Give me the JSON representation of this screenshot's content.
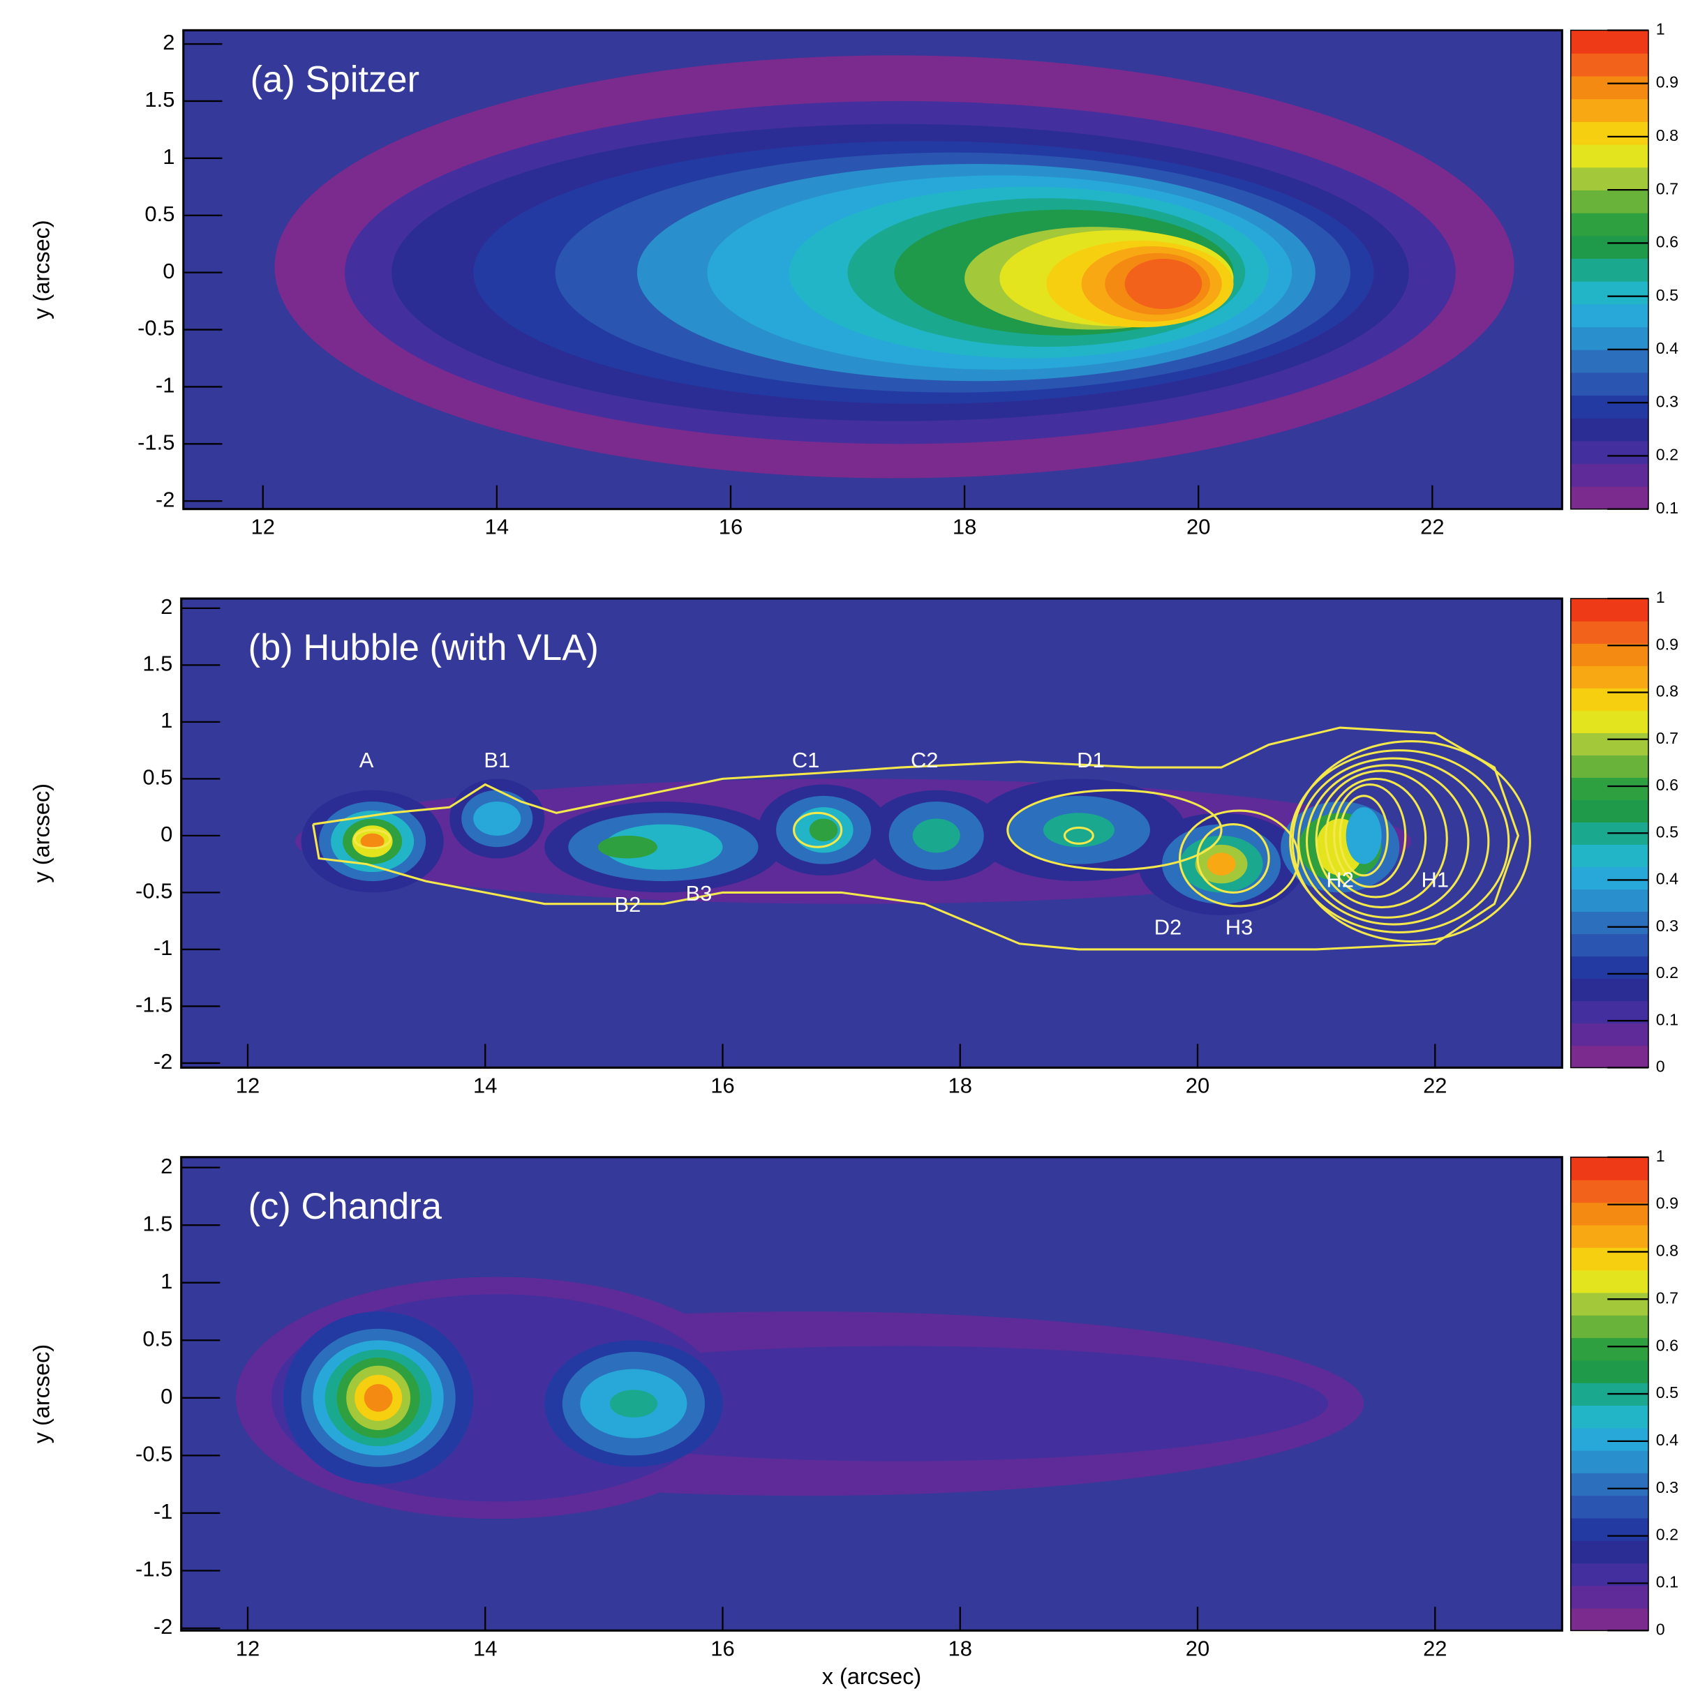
{
  "palette": [
    "#7b2a8e",
    "#5f2b98",
    "#43309e",
    "#2c2d94",
    "#233aa3",
    "#2a55b0",
    "#2b6fbd",
    "#2a8fcd",
    "#27a8d8",
    "#22b5c8",
    "#1aa88e",
    "#1e9a4a",
    "#2ea040",
    "#6ab33a",
    "#a3c93a",
    "#e4e41e",
    "#f6d010",
    "#f7a812",
    "#f58a12",
    "#f2621a",
    "#ee3a16"
  ],
  "chart_data": [
    {
      "type": "contour",
      "title": "(a) Spitzer",
      "ylabel": "y (arcsec)",
      "background": "#35399a",
      "xlim": [
        11.32,
        23.11
      ],
      "ylim": [
        -2.07,
        2.12
      ],
      "xticks": [
        12,
        14,
        16,
        18,
        20,
        22
      ],
      "yticks": [
        -2,
        -1.5,
        -1,
        -0.5,
        0,
        0.5,
        1,
        1.5,
        2
      ],
      "zlim": [
        0.1,
        1
      ],
      "zticks": [
        0.1,
        0.2,
        0.3,
        0.4,
        0.5,
        0.6,
        0.7,
        0.8,
        0.9,
        1
      ],
      "contours": [
        {
          "level": 0.1,
          "cx": 17.4,
          "cy": 0.05,
          "rx": 5.3,
          "ry": 1.85
        },
        {
          "level": 0.2,
          "cx": 17.45,
          "cy": 0,
          "rx": 4.75,
          "ry": 1.5
        },
        {
          "level": 0.25,
          "cx": 17.45,
          "cy": 0,
          "rx": 4.35,
          "ry": 1.3
        },
        {
          "level": 0.3,
          "cx": 17.65,
          "cy": 0,
          "rx": 3.85,
          "ry": 1.15
        },
        {
          "level": 0.35,
          "cx": 17.9,
          "cy": 0,
          "rx": 3.4,
          "ry": 1.05
        },
        {
          "level": 0.4,
          "cx": 18.1,
          "cy": 0,
          "rx": 2.9,
          "ry": 0.95
        },
        {
          "level": 0.45,
          "cx": 18.3,
          "cy": 0,
          "rx": 2.5,
          "ry": 0.85
        },
        {
          "level": 0.5,
          "cx": 18.55,
          "cy": 0,
          "rx": 2.05,
          "ry": 0.75
        },
        {
          "level": 0.55,
          "cx": 18.7,
          "cy": 0,
          "rx": 1.7,
          "ry": 0.65
        },
        {
          "level": 0.6,
          "cx": 18.85,
          "cy": 0,
          "rx": 1.45,
          "ry": 0.55
        },
        {
          "level": 0.7,
          "cx": 19.1,
          "cy": -0.05,
          "rx": 1.1,
          "ry": 0.45
        },
        {
          "level": 0.75,
          "cx": 19.3,
          "cy": -0.05,
          "rx": 1.0,
          "ry": 0.42
        },
        {
          "level": 0.8,
          "cx": 19.5,
          "cy": -0.1,
          "rx": 0.8,
          "ry": 0.38
        },
        {
          "level": 0.85,
          "cx": 19.6,
          "cy": -0.1,
          "rx": 0.6,
          "ry": 0.33
        },
        {
          "level": 0.9,
          "cx": 19.65,
          "cy": -0.1,
          "rx": 0.45,
          "ry": 0.27
        },
        {
          "level": 0.95,
          "cx": 19.7,
          "cy": -0.1,
          "rx": 0.33,
          "ry": 0.22
        }
      ]
    },
    {
      "type": "contour",
      "title": "(b) Hubble (with VLA)",
      "ylabel": "y (arcsec)",
      "background": "#35399a",
      "xlim": [
        11.44,
        23.07
      ],
      "ylim": [
        -2.04,
        2.085
      ],
      "xticks": [
        12,
        14,
        16,
        18,
        20,
        22
      ],
      "yticks": [
        -2,
        -1.5,
        -1,
        -0.5,
        0,
        0.5,
        1,
        1.5,
        2
      ],
      "zlim": [
        0,
        1
      ],
      "zticks": [
        0,
        0.1,
        0.2,
        0.3,
        0.4,
        0.5,
        0.6,
        0.7,
        0.8,
        0.9,
        1
      ],
      "contours": [
        {
          "level": 0.05,
          "cx": 17.1,
          "cy": -0.05,
          "rx": 4.7,
          "ry": 0.55
        },
        {
          "level": 0.15,
          "cx": 13.05,
          "cy": -0.05,
          "rx": 0.6,
          "ry": 0.45
        },
        {
          "level": 0.15,
          "cx": 14.1,
          "cy": 0.15,
          "rx": 0.4,
          "ry": 0.35
        },
        {
          "level": 0.15,
          "cx": 15.5,
          "cy": -0.1,
          "rx": 1.0,
          "ry": 0.4
        },
        {
          "level": 0.15,
          "cx": 16.85,
          "cy": 0.05,
          "rx": 0.55,
          "ry": 0.4
        },
        {
          "level": 0.15,
          "cx": 17.8,
          "cy": 0,
          "rx": 0.6,
          "ry": 0.4
        },
        {
          "level": 0.15,
          "cx": 19.0,
          "cy": 0.05,
          "rx": 0.9,
          "ry": 0.45
        },
        {
          "level": 0.15,
          "cx": 20.2,
          "cy": -0.25,
          "rx": 0.7,
          "ry": 0.45
        },
        {
          "level": 0.3,
          "cx": 13.05,
          "cy": -0.05,
          "rx": 0.45,
          "ry": 0.35
        },
        {
          "level": 0.3,
          "cx": 14.1,
          "cy": 0.15,
          "rx": 0.3,
          "ry": 0.25
        },
        {
          "level": 0.3,
          "cx": 15.5,
          "cy": -0.1,
          "rx": 0.8,
          "ry": 0.3
        },
        {
          "level": 0.3,
          "cx": 16.85,
          "cy": 0.05,
          "rx": 0.4,
          "ry": 0.3
        },
        {
          "level": 0.3,
          "cx": 17.8,
          "cy": 0,
          "rx": 0.4,
          "ry": 0.3
        },
        {
          "level": 0.3,
          "cx": 19.0,
          "cy": 0.05,
          "rx": 0.6,
          "ry": 0.3
        },
        {
          "level": 0.3,
          "cx": 20.2,
          "cy": -0.25,
          "rx": 0.5,
          "ry": 0.35
        },
        {
          "level": 0.3,
          "cx": 21.2,
          "cy": -0.1,
          "rx": 0.5,
          "ry": 0.4
        },
        {
          "level": 0.4,
          "cx": 14.1,
          "cy": 0.15,
          "rx": 0.2,
          "ry": 0.15
        },
        {
          "level": 0.45,
          "cx": 13.05,
          "cy": -0.05,
          "rx": 0.35,
          "ry": 0.27
        },
        {
          "level": 0.45,
          "cx": 15.5,
          "cy": -0.1,
          "rx": 0.5,
          "ry": 0.2
        },
        {
          "level": 0.45,
          "cx": 16.85,
          "cy": 0.05,
          "rx": 0.25,
          "ry": 0.2
        },
        {
          "level": 0.5,
          "cx": 17.8,
          "cy": 0,
          "rx": 0.2,
          "ry": 0.15
        },
        {
          "level": 0.5,
          "cx": 19.0,
          "cy": 0.05,
          "rx": 0.3,
          "ry": 0.15
        },
        {
          "level": 0.5,
          "cx": 20.2,
          "cy": -0.25,
          "rx": 0.35,
          "ry": 0.25
        },
        {
          "level": 0.6,
          "cx": 13.05,
          "cy": -0.05,
          "rx": 0.25,
          "ry": 0.2
        },
        {
          "level": 0.6,
          "cx": 15.2,
          "cy": -0.1,
          "rx": 0.25,
          "ry": 0.1
        },
        {
          "level": 0.6,
          "cx": 16.85,
          "cy": 0.05,
          "rx": 0.12,
          "ry": 0.1
        },
        {
          "level": 0.6,
          "cx": 21.2,
          "cy": -0.1,
          "rx": 0.35,
          "ry": 0.3
        },
        {
          "level": 0.7,
          "cx": 20.2,
          "cy": -0.25,
          "rx": 0.22,
          "ry": 0.17
        },
        {
          "level": 0.75,
          "cx": 13.05,
          "cy": -0.05,
          "rx": 0.17,
          "ry": 0.14
        },
        {
          "level": 0.75,
          "cx": 21.2,
          "cy": -0.1,
          "rx": 0.2,
          "ry": 0.25
        },
        {
          "level": 0.85,
          "cx": 20.2,
          "cy": -0.25,
          "rx": 0.12,
          "ry": 0.1
        },
        {
          "level": 0.9,
          "cx": 13.05,
          "cy": -0.05,
          "rx": 0.1,
          "ry": 0.07
        },
        {
          "level": 0.4,
          "cx": 21.4,
          "cy": 0,
          "rx": 0.15,
          "ry": 0.25
        }
      ],
      "radio_color": "#f5e84a",
      "radio_contours": [
        {
          "cx": 21.4,
          "cy": 0,
          "rx": 0.2,
          "ry": 0.35
        },
        {
          "cx": 21.45,
          "cy": 0,
          "rx": 0.3,
          "ry": 0.45
        },
        {
          "cx": 21.5,
          "cy": -0.02,
          "rx": 0.42,
          "ry": 0.52
        },
        {
          "cx": 21.55,
          "cy": -0.03,
          "rx": 0.55,
          "ry": 0.6
        },
        {
          "cx": 21.6,
          "cy": -0.05,
          "rx": 0.68,
          "ry": 0.67
        },
        {
          "cx": 21.65,
          "cy": -0.05,
          "rx": 0.8,
          "ry": 0.73
        },
        {
          "cx": 21.7,
          "cy": -0.05,
          "rx": 0.92,
          "ry": 0.8
        },
        {
          "cx": 21.8,
          "cy": -0.05,
          "rx": 1.0,
          "ry": 0.88
        },
        {
          "cx": 13.05,
          "cy": -0.03,
          "rx": 0.15,
          "ry": 0.08
        },
        {
          "cx": 16.8,
          "cy": 0.05,
          "rx": 0.2,
          "ry": 0.15
        },
        {
          "cx": 19.0,
          "cy": 0,
          "rx": 0.12,
          "ry": 0.07
        },
        {
          "cx": 19.3,
          "cy": 0.05,
          "rx": 0.9,
          "ry": 0.35
        },
        {
          "cx": 20.3,
          "cy": -0.2,
          "rx": 0.3,
          "ry": 0.3
        },
        {
          "cx": 20.35,
          "cy": -0.2,
          "rx": 0.5,
          "ry": 0.42
        }
      ],
      "envelope": {
        "x": [
          12.55,
          13.2,
          13.7,
          14.0,
          14.3,
          14.6,
          15.3,
          16.0,
          16.8,
          17.5,
          18.5,
          19.5,
          20.2,
          20.6,
          21.2,
          22.0,
          22.5,
          22.7,
          22.5,
          22.0,
          21.0,
          20.0,
          19.0,
          18.5,
          17.7,
          17.0,
          16.0,
          15.5,
          15.0,
          14.5,
          14.0,
          13.5,
          13.0,
          12.6,
          12.55
        ],
        "y": [
          0.1,
          0.2,
          0.25,
          0.45,
          0.3,
          0.2,
          0.35,
          0.5,
          0.55,
          0.6,
          0.65,
          0.6,
          0.6,
          0.8,
          0.95,
          0.9,
          0.6,
          0.0,
          -0.6,
          -0.95,
          -1.0,
          -1.0,
          -1.0,
          -0.95,
          -0.6,
          -0.5,
          -0.5,
          -0.6,
          -0.6,
          -0.6,
          -0.5,
          -0.4,
          -0.25,
          -0.2,
          0.1
        ]
      },
      "annotations": [
        {
          "text": "A",
          "x": 13.0,
          "y": 0.65
        },
        {
          "text": "B1",
          "x": 14.1,
          "y": 0.65
        },
        {
          "text": "C1",
          "x": 16.7,
          "y": 0.65
        },
        {
          "text": "C2",
          "x": 17.7,
          "y": 0.65
        },
        {
          "text": "D1",
          "x": 19.1,
          "y": 0.65
        },
        {
          "text": "B2",
          "x": 15.2,
          "y": -0.62
        },
        {
          "text": "B3",
          "x": 15.8,
          "y": -0.52
        },
        {
          "text": "D2",
          "x": 19.75,
          "y": -0.82
        },
        {
          "text": "H3",
          "x": 20.35,
          "y": -0.82
        },
        {
          "text": "H2",
          "x": 21.2,
          "y": -0.4
        },
        {
          "text": "H1",
          "x": 22.0,
          "y": -0.4
        }
      ]
    },
    {
      "type": "contour",
      "title": "(c) Chandra",
      "ylabel": "y (arcsec)",
      "xlabel": "x (arcsec)",
      "background": "#35399a",
      "xlim": [
        11.44,
        23.07
      ],
      "ylim": [
        -2.02,
        2.09
      ],
      "xticks": [
        12,
        14,
        16,
        18,
        20,
        22
      ],
      "yticks": [
        -2,
        -1.5,
        -1,
        -0.5,
        0,
        0.5,
        1,
        1.5,
        2
      ],
      "zlim": [
        0,
        1
      ],
      "zticks": [
        0,
        0.1,
        0.2,
        0.3,
        0.4,
        0.5,
        0.6,
        0.7,
        0.8,
        0.9,
        1
      ],
      "contours": [
        {
          "level": 0.05,
          "cx": 16.7,
          "cy": -0.05,
          "rx": 4.7,
          "ry": 0.8
        },
        {
          "level": 0.05,
          "cx": 14.1,
          "cy": 0,
          "rx": 2.2,
          "ry": 1.05
        },
        {
          "level": 0.1,
          "cx": 17.5,
          "cy": -0.05,
          "rx": 3.6,
          "ry": 0.5
        },
        {
          "level": 0.1,
          "cx": 14.1,
          "cy": 0,
          "rx": 1.9,
          "ry": 0.9
        },
        {
          "level": 0.2,
          "cx": 13.1,
          "cy": 0,
          "rx": 0.8,
          "ry": 0.75
        },
        {
          "level": 0.2,
          "cx": 15.25,
          "cy": -0.05,
          "rx": 0.75,
          "ry": 0.55
        },
        {
          "level": 0.3,
          "cx": 13.1,
          "cy": 0,
          "rx": 0.65,
          "ry": 0.6
        },
        {
          "level": 0.3,
          "cx": 15.25,
          "cy": -0.05,
          "rx": 0.6,
          "ry": 0.45
        },
        {
          "level": 0.4,
          "cx": 13.1,
          "cy": 0,
          "rx": 0.55,
          "ry": 0.5
        },
        {
          "level": 0.4,
          "cx": 15.25,
          "cy": -0.05,
          "rx": 0.45,
          "ry": 0.3
        },
        {
          "level": 0.5,
          "cx": 13.1,
          "cy": 0,
          "rx": 0.45,
          "ry": 0.42
        },
        {
          "level": 0.5,
          "cx": 15.25,
          "cy": -0.05,
          "rx": 0.2,
          "ry": 0.12
        },
        {
          "level": 0.6,
          "cx": 13.1,
          "cy": 0,
          "rx": 0.35,
          "ry": 0.35
        },
        {
          "level": 0.7,
          "cx": 13.1,
          "cy": 0,
          "rx": 0.27,
          "ry": 0.28
        },
        {
          "level": 0.8,
          "cx": 13.1,
          "cy": 0,
          "rx": 0.2,
          "ry": 0.2
        },
        {
          "level": 0.9,
          "cx": 13.1,
          "cy": 0,
          "rx": 0.12,
          "ry": 0.12
        }
      ]
    }
  ]
}
